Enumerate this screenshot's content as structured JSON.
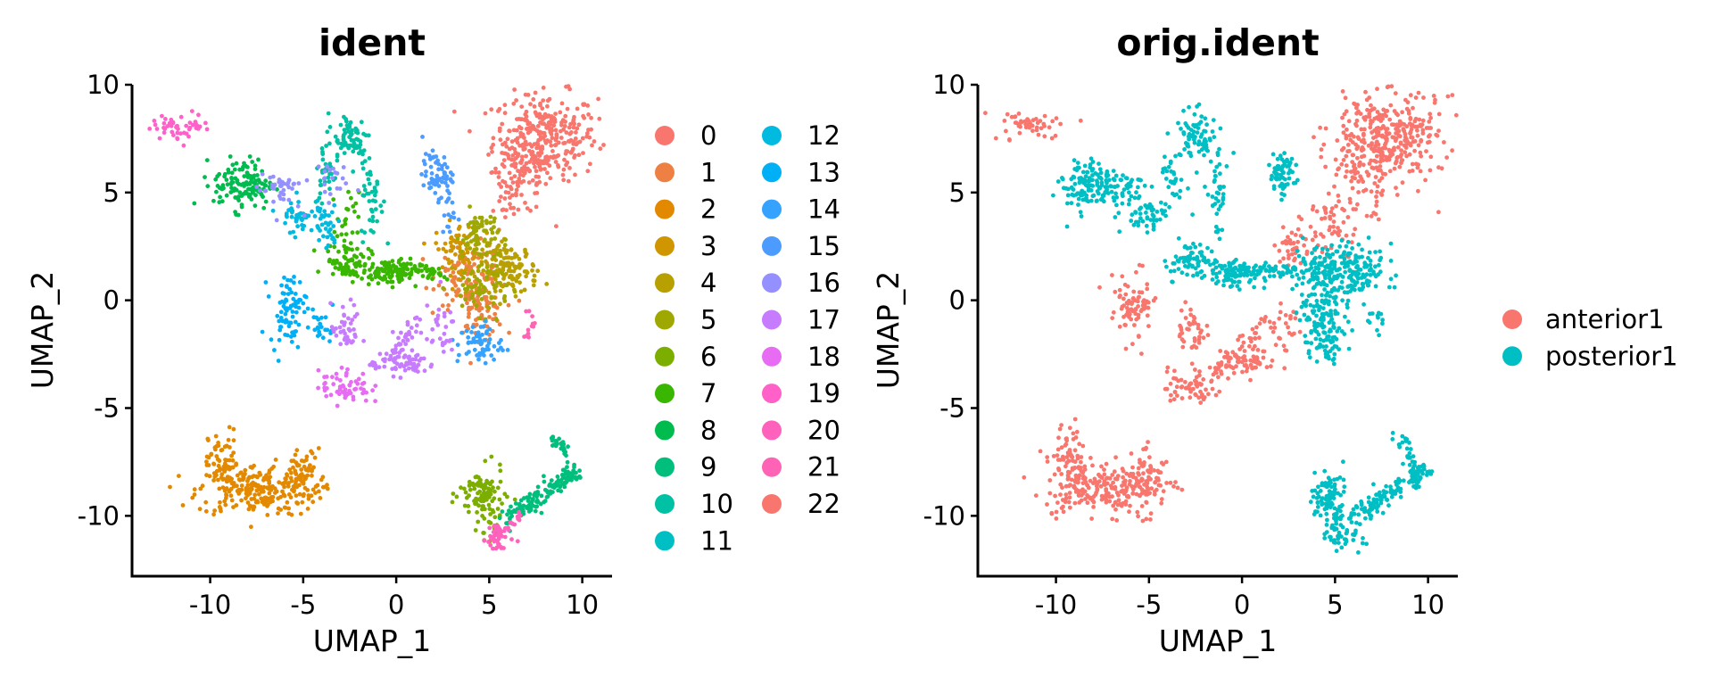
{
  "chart_data": [
    {
      "type": "scatter",
      "title": "ident",
      "xlabel": "UMAP_1",
      "ylabel": "UMAP_2",
      "xlim": [
        -14.2,
        11.6
      ],
      "ylim": [
        -12.8,
        10.0
      ],
      "x_ticks": [
        -10,
        -5,
        0,
        5,
        10
      ],
      "y_ticks": [
        -10,
        -5,
        0,
        5,
        10
      ],
      "x_tick_labels": [
        "-10",
        "-5",
        "0",
        "5",
        "10"
      ],
      "y_tick_labels": [
        "-10",
        "-5",
        "0",
        "5",
        "10"
      ],
      "grid": false,
      "legend_position": "right",
      "legend_columns": 2,
      "series": [
        {
          "name": "0",
          "color": "#F8766D",
          "clusters": [
            [
              8.0,
              7.6,
              1.4,
              1.0,
              300
            ],
            [
              6.8,
              6.0,
              0.8,
              1.0,
              80
            ],
            [
              5.9,
              4.6,
              0.4,
              0.9,
              25
            ]
          ]
        },
        {
          "name": "1",
          "color": "#EE8043",
          "clusters": [
            [
              4.0,
              1.2,
              0.9,
              0.7,
              110
            ],
            [
              4.4,
              -0.5,
              0.7,
              0.6,
              70
            ]
          ]
        },
        {
          "name": "2",
          "color": "#E38900",
          "clusters": [
            [
              -7.5,
              -8.8,
              1.6,
              0.6,
              220
            ],
            [
              -9.3,
              -7.6,
              0.4,
              0.8,
              70
            ],
            [
              -5.0,
              -8.1,
              0.5,
              0.6,
              60
            ]
          ]
        },
        {
          "name": "3",
          "color": "#D09600",
          "clusters": [
            [
              3.3,
              2.4,
              0.6,
              0.6,
              70
            ]
          ]
        },
        {
          "name": "4",
          "color": "#B8A000",
          "clusters": [
            [
              6.0,
              1.4,
              0.8,
              0.6,
              140
            ]
          ]
        },
        {
          "name": "5",
          "color": "#9FA800",
          "clusters": [
            [
              4.5,
              3.0,
              0.5,
              0.6,
              70
            ],
            [
              4.5,
              0.6,
              0.8,
              0.6,
              60
            ]
          ]
        },
        {
          "name": "6",
          "color": "#7CAE00",
          "clusters": [
            [
              4.6,
              -9.0,
              0.6,
              0.6,
              90
            ],
            [
              5.0,
              -10.3,
              0.3,
              0.4,
              25
            ]
          ]
        },
        {
          "name": "7",
          "color": "#39B600",
          "clusters": [
            [
              -2.6,
              1.8,
              0.6,
              0.4,
              70
            ],
            [
              -0.3,
              1.3,
              0.8,
              0.3,
              90
            ],
            [
              -2.6,
              3.4,
              0.3,
              0.8,
              25
            ]
          ]
        },
        {
          "name": "8",
          "color": "#00BB4E",
          "clusters": [
            [
              -8.2,
              5.4,
              0.8,
              0.6,
              130
            ]
          ]
        },
        {
          "name": "9",
          "color": "#00BF7D",
          "clusters": []
        },
        {
          "name": "10",
          "color": "#00C1A3",
          "clusters": [
            [
              -2.5,
              7.5,
              0.6,
              0.6,
              70
            ],
            [
              -1.3,
              4.8,
              0.3,
              1.0,
              40
            ],
            [
              -3.8,
              5.8,
              0.3,
              0.8,
              30
            ]
          ]
        },
        {
          "name": "11",
          "color": "#00BFC4",
          "clusters": []
        },
        {
          "name": "12",
          "color": "#00BAE0",
          "clusters": [
            [
              -5.0,
              4.0,
              0.7,
              0.4,
              50
            ],
            [
              -3.8,
              3.2,
              0.3,
              0.5,
              25
            ]
          ]
        },
        {
          "name": "13",
          "color": "#00B0F6",
          "clusters": [
            [
              -5.8,
              -0.4,
              0.5,
              0.8,
              80
            ],
            [
              -3.9,
              -1.3,
              0.3,
              0.4,
              20
            ]
          ]
        },
        {
          "name": "14",
          "color": "#35A2FF",
          "clusters": [
            [
              4.5,
              -2.0,
              0.6,
              0.5,
              60
            ]
          ]
        },
        {
          "name": "15",
          "color": "#4C9BFF",
          "clusters": [
            [
              2.2,
              5.8,
              0.4,
              0.5,
              60
            ],
            [
              2.8,
              4.0,
              0.2,
              0.6,
              15
            ]
          ]
        },
        {
          "name": "16",
          "color": "#9590FF",
          "clusters": [
            [
              -6.3,
              5.2,
              0.6,
              0.5,
              40
            ],
            [
              -3.7,
              5.6,
              0.5,
              0.5,
              20
            ]
          ]
        },
        {
          "name": "17",
          "color": "#C77CFF",
          "clusters": [
            [
              0.5,
              -2.9,
              0.8,
              0.3,
              60
            ],
            [
              2.2,
              -1.3,
              0.5,
              0.6,
              30
            ],
            [
              -2.7,
              -1.4,
              0.4,
              0.6,
              40
            ]
          ]
        },
        {
          "name": "18",
          "color": "#E76BF3",
          "clusters": [
            [
              -2.8,
              -4.0,
              0.7,
              0.4,
              60
            ]
          ]
        },
        {
          "name": "19",
          "color": "#FF61C9",
          "clusters": [
            [
              -11.5,
              8.1,
              0.8,
              0.3,
              50
            ]
          ]
        },
        {
          "name": "20",
          "color": "#FF62BC",
          "clusters": [
            [
              5.5,
              -11.1,
              0.4,
              0.3,
              30
            ]
          ]
        },
        {
          "name": "21",
          "color": "#FF63B6",
          "clusters": [
            [
              7.2,
              -1.0,
              0.2,
              0.4,
              12
            ]
          ]
        },
        {
          "name": "22",
          "color": "#F8766D",
          "clusters": []
        }
      ],
      "lines": [
        {
          "series": "9",
          "from": [
            5.8,
            -10.2
          ],
          "to": [
            9.8,
            -7.9
          ],
          "spread": 0.2,
          "n": 130
        },
        {
          "series": "9",
          "from": [
            8.5,
            -6.3
          ],
          "to": [
            9.6,
            -8.3
          ],
          "spread": 0.2,
          "n": 40
        },
        {
          "series": "17",
          "from": [
            -1.4,
            -3.3
          ],
          "to": [
            1.3,
            -1.0
          ],
          "spread": 0.2,
          "n": 40
        },
        {
          "series": "7",
          "from": [
            -1.3,
            1.2
          ],
          "to": [
            2.8,
            1.4
          ],
          "spread": 0.2,
          "n": 50
        },
        {
          "series": "20",
          "from": [
            4.9,
            -11.2
          ],
          "to": [
            6.8,
            -10.0
          ],
          "spread": 0.15,
          "n": 30
        }
      ]
    },
    {
      "type": "scatter",
      "title": "orig.ident",
      "xlabel": "UMAP_1",
      "ylabel": "UMAP_2",
      "xlim": [
        -14.2,
        11.6
      ],
      "ylim": [
        -12.8,
        10.0
      ],
      "x_ticks": [
        -10,
        -5,
        0,
        5,
        10
      ],
      "y_ticks": [
        -10,
        -5,
        0,
        5,
        10
      ],
      "x_tick_labels": [
        "-10",
        "-5",
        "0",
        "5",
        "10"
      ],
      "y_tick_labels": [
        "-10",
        "-5",
        "0",
        "5",
        "10"
      ],
      "grid": false,
      "legend_position": "right",
      "series": [
        {
          "name": "anterior1",
          "color": "#F8766D",
          "clusters": [
            [
              8.0,
              7.6,
              1.4,
              1.0,
              300
            ],
            [
              6.8,
              6.0,
              0.8,
              1.0,
              80
            ],
            [
              4.8,
              3.5,
              0.7,
              0.8,
              60
            ],
            [
              2.6,
              2.6,
              0.5,
              0.5,
              40
            ],
            [
              -7.5,
              -8.8,
              1.6,
              0.6,
              220
            ],
            [
              -9.3,
              -7.6,
              0.4,
              0.8,
              70
            ],
            [
              -5.0,
              -8.1,
              0.5,
              0.6,
              60
            ],
            [
              -11.5,
              8.1,
              0.8,
              0.3,
              50
            ],
            [
              -5.8,
              -0.4,
              0.5,
              0.8,
              80
            ],
            [
              -2.8,
              -4.0,
              0.7,
              0.4,
              60
            ],
            [
              -2.7,
              -1.4,
              0.4,
              0.6,
              40
            ],
            [
              0.5,
              -2.9,
              0.8,
              0.3,
              60
            ],
            [
              2.2,
              -1.3,
              0.5,
              0.6,
              30
            ]
          ]
        },
        {
          "name": "posterior1",
          "color": "#00BFC4",
          "clusters": [
            [
              -8.2,
              5.4,
              0.8,
              0.6,
              130
            ],
            [
              -6.3,
              5.2,
              0.6,
              0.5,
              40
            ],
            [
              -2.5,
              7.5,
              0.6,
              0.6,
              70
            ],
            [
              -1.3,
              4.8,
              0.3,
              1.0,
              40
            ],
            [
              -3.8,
              5.8,
              0.3,
              0.8,
              30
            ],
            [
              -5.0,
              4.0,
              0.7,
              0.4,
              50
            ],
            [
              -2.6,
              1.8,
              0.6,
              0.4,
              70
            ],
            [
              -0.3,
              1.3,
              0.8,
              0.3,
              90
            ],
            [
              2.2,
              5.8,
              0.4,
              0.5,
              60
            ],
            [
              4.0,
              1.2,
              0.9,
              0.7,
              110
            ],
            [
              4.4,
              -0.5,
              0.7,
              0.6,
              70
            ],
            [
              6.0,
              1.4,
              0.8,
              0.6,
              140
            ],
            [
              4.5,
              -2.0,
              0.6,
              0.5,
              60
            ],
            [
              4.6,
              -9.0,
              0.6,
              0.6,
              90
            ],
            [
              5.0,
              -10.3,
              0.3,
              0.4,
              25
            ],
            [
              5.5,
              -11.1,
              0.4,
              0.3,
              30
            ],
            [
              7.2,
              -1.0,
              0.2,
              0.4,
              12
            ]
          ]
        }
      ],
      "lines": [
        {
          "series": "posterior1",
          "from": [
            5.8,
            -10.2
          ],
          "to": [
            9.8,
            -7.9
          ],
          "spread": 0.2,
          "n": 130
        },
        {
          "series": "posterior1",
          "from": [
            8.5,
            -6.3
          ],
          "to": [
            9.6,
            -8.3
          ],
          "spread": 0.2,
          "n": 40
        },
        {
          "series": "posterior1",
          "from": [
            -1.3,
            1.2
          ],
          "to": [
            2.8,
            1.4
          ],
          "spread": 0.2,
          "n": 50
        },
        {
          "series": "anterior1",
          "from": [
            -1.4,
            -3.3
          ],
          "to": [
            1.3,
            -1.0
          ],
          "spread": 0.2,
          "n": 40
        }
      ]
    }
  ]
}
